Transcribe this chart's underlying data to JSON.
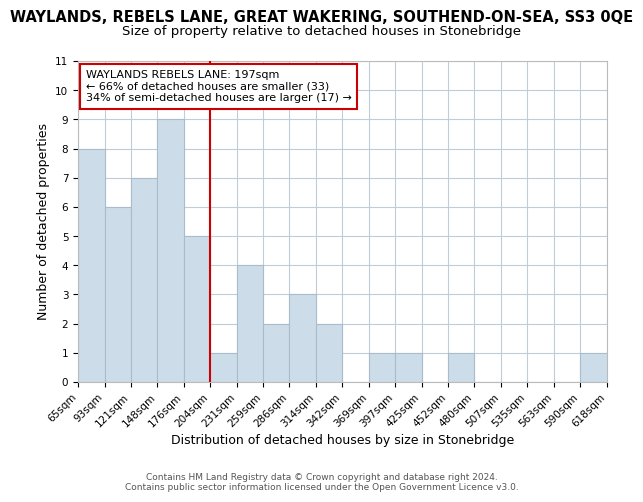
{
  "title": "WAYLANDS, REBELS LANE, GREAT WAKERING, SOUTHEND-ON-SEA, SS3 0QE",
  "subtitle": "Size of property relative to detached houses in Stonebridge",
  "xlabel": "Distribution of detached houses by size in Stonebridge",
  "ylabel": "Number of detached properties",
  "footer_line1": "Contains HM Land Registry data © Crown copyright and database right 2024.",
  "footer_line2": "Contains public sector information licensed under the Open Government Licence v3.0.",
  "tick_labels": [
    "65sqm",
    "93sqm",
    "121sqm",
    "148sqm",
    "176sqm",
    "204sqm",
    "231sqm",
    "259sqm",
    "286sqm",
    "314sqm",
    "342sqm",
    "369sqm",
    "397sqm",
    "425sqm",
    "452sqm",
    "480sqm",
    "507sqm",
    "535sqm",
    "563sqm",
    "590sqm",
    "618sqm"
  ],
  "bar_values": [
    8,
    6,
    7,
    9,
    5,
    1,
    4,
    2,
    3,
    2,
    0,
    1,
    1,
    0,
    1,
    0,
    0,
    0,
    0,
    1
  ],
  "bar_color": "#ccdce8",
  "bar_edge_color": "#aabccc",
  "reference_line_x": 5,
  "reference_line_color": "#cc0000",
  "annotation_title": "WAYLANDS REBELS LANE: 197sqm",
  "annotation_line1": "← 66% of detached houses are smaller (33)",
  "annotation_line2": "34% of semi-detached houses are larger (17) →",
  "annotation_box_color": "#ffffff",
  "annotation_box_edge_color": "#cc0000",
  "ylim": [
    0,
    11
  ],
  "yticks": [
    0,
    1,
    2,
    3,
    4,
    5,
    6,
    7,
    8,
    9,
    10,
    11
  ],
  "background_color": "#ffffff",
  "grid_color": "#c0ccd8",
  "title_fontsize": 10.5,
  "subtitle_fontsize": 9.5,
  "axis_label_fontsize": 9,
  "tick_fontsize": 7.5,
  "footer_fontsize": 6.5
}
